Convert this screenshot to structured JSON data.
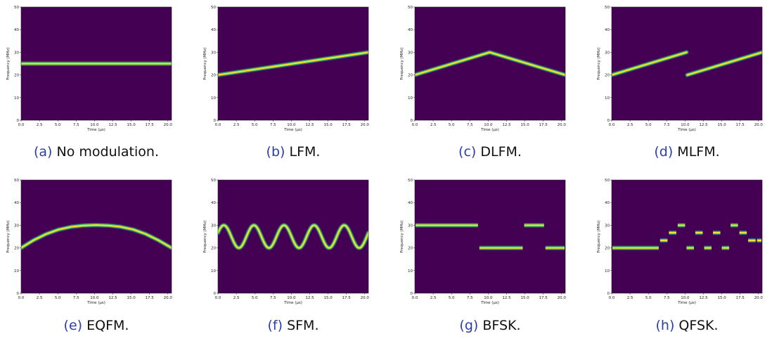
{
  "colors": {
    "background": "#440154",
    "line_core": "#fde725",
    "line_mid": "#5ec962",
    "line_edge": "#21918c",
    "caption_label": "#2b3ea8"
  },
  "captions": [
    {
      "label": "(a)",
      "text": "No modulation."
    },
    {
      "label": "(b)",
      "text": "LFM."
    },
    {
      "label": "(c)",
      "text": "DLFM."
    },
    {
      "label": "(d)",
      "text": "MLFM."
    },
    {
      "label": "(e)",
      "text": "EQFM."
    },
    {
      "label": "(f)",
      "text": "SFM."
    },
    {
      "label": "(g)",
      "text": "BFSK."
    },
    {
      "label": "(h)",
      "text": "QFSK."
    }
  ],
  "chart_data": [
    {
      "type": "heatmap",
      "modulation": "none",
      "xlabel": "Time (μs)",
      "ylabel": "Frequency (MHz)",
      "xlim": [
        0,
        20.5
      ],
      "ylim": [
        0,
        50
      ],
      "xticks": [
        "0.0",
        "2.5",
        "5.0",
        "7.5",
        "10.0",
        "12.5",
        "15.0",
        "17.5",
        "20.0"
      ],
      "yticks": [
        "0",
        "10",
        "20",
        "30",
        "40",
        "50"
      ],
      "segments": [
        {
          "x": [
            0,
            20.5
          ],
          "y": [
            25,
            25
          ]
        }
      ]
    },
    {
      "type": "heatmap",
      "modulation": "lfm",
      "xlabel": "Time (μs)",
      "ylabel": "Frequency (MHz)",
      "xlim": [
        0,
        20.5
      ],
      "ylim": [
        0,
        50
      ],
      "xticks": [
        "0.0",
        "2.5",
        "5.0",
        "7.5",
        "10.0",
        "12.5",
        "15.0",
        "17.5",
        "20.0"
      ],
      "yticks": [
        "0",
        "10",
        "20",
        "30",
        "40",
        "50"
      ],
      "segments": [
        {
          "x": [
            0,
            20.5
          ],
          "y": [
            20,
            30
          ]
        }
      ]
    },
    {
      "type": "heatmap",
      "modulation": "dlfm",
      "xlabel": "Time (μs)",
      "ylabel": "Frequency (MHz)",
      "xlim": [
        0,
        20.5
      ],
      "ylim": [
        0,
        50
      ],
      "xticks": [
        "0.0",
        "2.5",
        "5.0",
        "7.5",
        "10.0",
        "12.5",
        "15.0",
        "17.5",
        "20.0"
      ],
      "yticks": [
        "0",
        "10",
        "20",
        "30",
        "40",
        "50"
      ],
      "segments": [
        {
          "x": [
            0,
            10.2,
            20.5
          ],
          "y": [
            20,
            30,
            20
          ]
        }
      ]
    },
    {
      "type": "heatmap",
      "modulation": "mlfm",
      "xlabel": "Time (μs)",
      "ylabel": "Frequency (MHz)",
      "xlim": [
        0,
        20.5
      ],
      "ylim": [
        0,
        50
      ],
      "xticks": [
        "0.0",
        "2.5",
        "5.0",
        "7.5",
        "10.0",
        "12.5",
        "15.0",
        "17.5",
        "20.0"
      ],
      "yticks": [
        "0",
        "10",
        "20",
        "30",
        "40",
        "50"
      ],
      "segments": [
        {
          "x": [
            0,
            10.2
          ],
          "y": [
            20,
            30
          ]
        },
        {
          "x": [
            10.3,
            20.5
          ],
          "y": [
            20,
            30
          ]
        }
      ]
    },
    {
      "type": "heatmap",
      "modulation": "eqfm",
      "xlabel": "Time (μs)",
      "ylabel": "Frequency (MHz)",
      "xlim": [
        0,
        20.5
      ],
      "ylim": [
        0,
        50
      ],
      "xticks": [
        "0.0",
        "2.5",
        "5.0",
        "7.5",
        "10.0",
        "12.5",
        "15.0",
        "17.5",
        "20.0"
      ],
      "yticks": [
        "0",
        "10",
        "20",
        "30",
        "40",
        "50"
      ],
      "segments": [
        {
          "x": [
            0,
            1.7,
            3.4,
            5.1,
            6.8,
            8.5,
            10.2,
            11.9,
            13.6,
            15.3,
            17.0,
            18.7,
            20.5
          ],
          "y": [
            20,
            23.4,
            26.1,
            28.1,
            29.3,
            29.9,
            30.1,
            29.9,
            29.3,
            28.1,
            26.1,
            23.4,
            20
          ]
        }
      ]
    },
    {
      "type": "heatmap",
      "modulation": "sfm",
      "xlabel": "Time (μs)",
      "ylabel": "Frequency (MHz)",
      "xlim": [
        0,
        20.5
      ],
      "ylim": [
        0,
        50
      ],
      "xticks": [
        "0.0",
        "2.5",
        "5.0",
        "7.5",
        "10.0",
        "12.5",
        "15.0",
        "17.5",
        "20.0"
      ],
      "yticks": [
        "0",
        "10",
        "20",
        "30",
        "40",
        "50"
      ],
      "sinusoid": {
        "center": 25,
        "amplitude": 5,
        "period_us": 4.1,
        "first_peak_us": 0.8
      }
    },
    {
      "type": "heatmap",
      "modulation": "bfsk",
      "xlabel": "Time (μs)",
      "ylabel": "Frequency (MHz)",
      "xlim": [
        0,
        20.5
      ],
      "ylim": [
        0,
        50
      ],
      "xticks": [
        "0.0",
        "2.5",
        "5.0",
        "7.5",
        "10.0",
        "12.5",
        "15.0",
        "17.5",
        "20.0"
      ],
      "yticks": [
        "0",
        "10",
        "20",
        "30",
        "40",
        "50"
      ],
      "steps": [
        {
          "x0": 0,
          "x1": 8.7,
          "y": 30
        },
        {
          "x0": 8.7,
          "x1": 14.8,
          "y": 20
        },
        {
          "x0": 14.8,
          "x1": 17.7,
          "y": 30
        },
        {
          "x0": 17.7,
          "x1": 20.5,
          "y": 20
        }
      ]
    },
    {
      "type": "heatmap",
      "modulation": "qfsk",
      "xlabel": "Time (μs)",
      "ylabel": "Frequency (MHz)",
      "xlim": [
        0,
        20.5
      ],
      "ylim": [
        0,
        50
      ],
      "xticks": [
        "0.0",
        "2.5",
        "5.0",
        "7.5",
        "10.0",
        "12.5",
        "15.0",
        "17.5",
        "20.0"
      ],
      "yticks": [
        "0",
        "10",
        "20",
        "30",
        "40",
        "50"
      ],
      "steps": [
        {
          "x0": 0,
          "x1": 6.5,
          "y": 20
        },
        {
          "x0": 6.5,
          "x1": 7.7,
          "y": 23.3
        },
        {
          "x0": 7.7,
          "x1": 8.9,
          "y": 26.7
        },
        {
          "x0": 8.9,
          "x1": 10.1,
          "y": 30
        },
        {
          "x0": 10.1,
          "x1": 11.3,
          "y": 20
        },
        {
          "x0": 11.3,
          "x1": 12.5,
          "y": 26.7
        },
        {
          "x0": 12.5,
          "x1": 13.7,
          "y": 20
        },
        {
          "x0": 13.7,
          "x1": 14.9,
          "y": 26.7
        },
        {
          "x0": 14.9,
          "x1": 16.1,
          "y": 20
        },
        {
          "x0": 16.1,
          "x1": 17.3,
          "y": 30
        },
        {
          "x0": 17.3,
          "x1": 18.5,
          "y": 26.7
        },
        {
          "x0": 18.5,
          "x1": 19.7,
          "y": 23.3
        },
        {
          "x0": 19.7,
          "x1": 20.5,
          "y": 23.3
        }
      ]
    }
  ]
}
